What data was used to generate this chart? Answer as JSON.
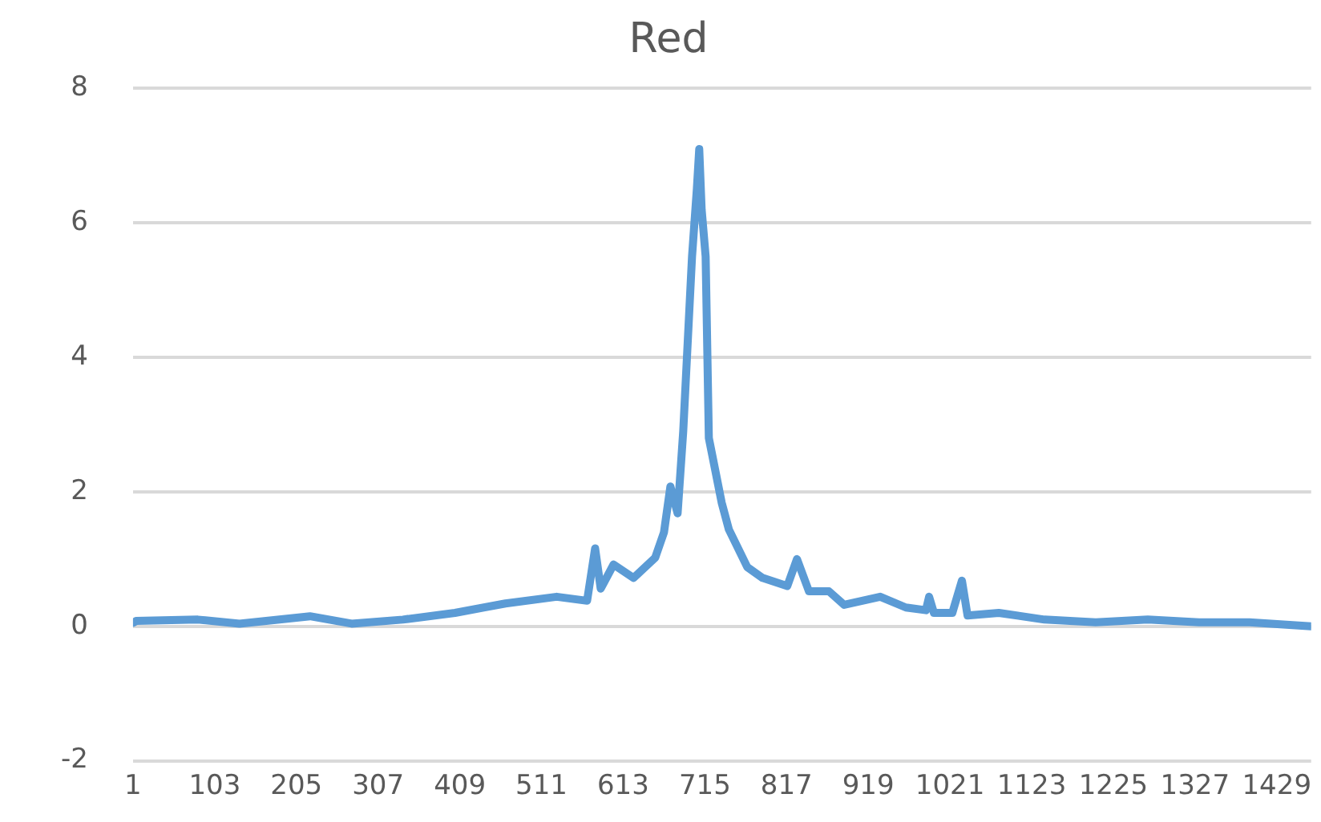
{
  "chart_data": {
    "type": "line",
    "title": "Red",
    "xlim": [
      1,
      1472
    ],
    "xticks": [
      1,
      103,
      205,
      307,
      409,
      511,
      613,
      715,
      817,
      919,
      1021,
      1123,
      1225,
      1327,
      1429
    ],
    "ylim": [
      -2,
      8
    ],
    "yticks": [
      -2,
      0,
      2,
      4,
      6,
      8
    ],
    "grid": "y",
    "legend": false,
    "marker": "none",
    "line_style": "solid",
    "series": [
      {
        "color": "#5b9bd5",
        "x": [
          1,
          5,
          82,
          134,
          222,
          274,
          338,
          403,
          466,
          530,
          568,
          578,
          585,
          601,
          626,
          653,
          664,
          672,
          681,
          688,
          699,
          705,
          708,
          711,
          716,
          720,
          736,
          745,
          768,
          787,
          818,
          830,
          845,
          870,
          889,
          934,
          966,
          991,
          995,
          1001,
          1024,
          1036,
          1043,
          1082,
          1139,
          1203,
          1268,
          1332,
          1395,
          1472
        ],
        "values": [
          0.05,
          0.08,
          0.1,
          0.04,
          0.15,
          0.04,
          0.1,
          0.2,
          0.34,
          0.44,
          0.38,
          1.16,
          0.56,
          0.92,
          0.72,
          1.02,
          1.4,
          2.08,
          1.68,
          2.9,
          5.5,
          6.5,
          7.1,
          6.2,
          5.5,
          2.8,
          1.84,
          1.44,
          0.88,
          0.72,
          0.6,
          1.0,
          0.52,
          0.52,
          0.32,
          0.44,
          0.28,
          0.24,
          0.44,
          0.2,
          0.2,
          0.68,
          0.16,
          0.2,
          0.1,
          0.06,
          0.1,
          0.06,
          0.06,
          0
        ]
      }
    ]
  }
}
